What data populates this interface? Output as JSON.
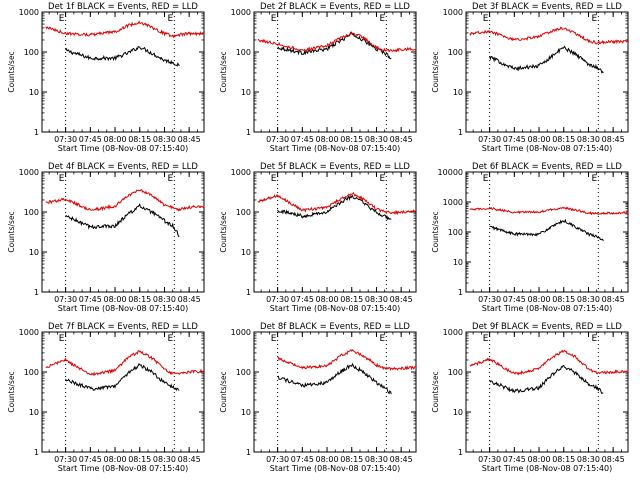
{
  "figure": {
    "shared_xlabel": "Start Time (08-Nov-08 07:15:40)",
    "ylabel": "Counts/sec",
    "marker_label": "E",
    "colors": {
      "events": "#000000",
      "lld": "#e00000",
      "axes": "#000000",
      "background": "#ffffff"
    }
  },
  "chart_data": [
    {
      "type": "line",
      "title": "Det 1f BLACK = Events, RED = LLD",
      "xlabel": "Start Time (08-Nov-08 07:15:40)",
      "ylabel": "Counts/sec",
      "x_ticks": [
        "07:30",
        "07:45",
        "08:00",
        "08:15",
        "08:30",
        "08:45"
      ],
      "y_ticks": [
        "1",
        "10",
        "100",
        "1000"
      ],
      "yscale": "log",
      "ylim": [
        1,
        1000
      ],
      "xlim": [
        "07:15:40",
        "08:54"
      ],
      "markers": [
        "07:30",
        "08:36"
      ],
      "x": [
        "07:18",
        "07:30",
        "07:45",
        "08:00",
        "08:08",
        "08:15",
        "08:22",
        "08:30",
        "08:35",
        "08:39",
        "08:45",
        "08:54"
      ],
      "series": [
        {
          "values": [
            null,
            110,
            70,
            70,
            95,
            135,
            95,
            62,
            55,
            45,
            null,
            null
          ]
        },
        {
          "values": [
            420,
            290,
            270,
            320,
            460,
            560,
            420,
            290,
            250,
            270,
            290,
            290
          ]
        }
      ]
    },
    {
      "type": "line",
      "title": "Det 2f BLACK = Events, RED = LLD",
      "xlabel": "Start Time (08-Nov-08 07:15:40)",
      "ylabel": "Counts/sec",
      "x_ticks": [
        "07:30",
        "07:45",
        "08:00",
        "08:15",
        "08:30",
        "08:45"
      ],
      "y_ticks": [
        "1",
        "10",
        "100",
        "1000"
      ],
      "yscale": "log",
      "ylim": [
        1,
        1000
      ],
      "xlim": [
        "07:15:40",
        "08:54"
      ],
      "markers": [
        "07:30",
        "08:36"
      ],
      "x": [
        "07:18",
        "07:30",
        "07:45",
        "08:00",
        "08:08",
        "08:15",
        "08:22",
        "08:30",
        "08:35",
        "08:39",
        "08:45",
        "08:54"
      ],
      "series": [
        {
          "values": [
            null,
            130,
            95,
            120,
            190,
            280,
            200,
            120,
            95,
            70,
            null,
            null
          ]
        },
        {
          "values": [
            200,
            160,
            110,
            145,
            220,
            300,
            230,
            130,
            110,
            110,
            115,
            120
          ]
        }
      ]
    },
    {
      "type": "line",
      "title": "Det 3f BLACK = Events, RED = LLD",
      "xlabel": "Start Time (08-Nov-08 07:15:40)",
      "ylabel": "Counts/sec",
      "x_ticks": [
        "07:30",
        "07:45",
        "08:00",
        "08:15",
        "08:30",
        "08:45"
      ],
      "y_ticks": [
        "1",
        "10",
        "100",
        "1000"
      ],
      "yscale": "log",
      "ylim": [
        1,
        1000
      ],
      "xlim": [
        "07:15:40",
        "08:54"
      ],
      "markers": [
        "07:30",
        "08:36"
      ],
      "x": [
        "07:18",
        "07:30",
        "07:45",
        "08:00",
        "08:08",
        "08:15",
        "08:22",
        "08:30",
        "08:35",
        "08:39",
        "08:45",
        "08:54"
      ],
      "series": [
        {
          "values": [
            null,
            75,
            38,
            45,
            80,
            130,
            90,
            50,
            42,
            30,
            null,
            null
          ]
        },
        {
          "values": [
            280,
            330,
            200,
            240,
            340,
            400,
            290,
            190,
            170,
            175,
            180,
            185
          ]
        }
      ]
    },
    {
      "type": "line",
      "title": "Det 4f BLACK = Events, RED = LLD",
      "xlabel": "Start Time (08-Nov-08 07:15:40)",
      "ylabel": "Counts/sec",
      "x_ticks": [
        "07:30",
        "07:45",
        "08:00",
        "08:15",
        "08:30",
        "08:45"
      ],
      "y_ticks": [
        "1",
        "10",
        "100",
        "1000"
      ],
      "yscale": "log",
      "ylim": [
        1,
        1000
      ],
      "xlim": [
        "07:15:40",
        "08:54"
      ],
      "markers": [
        "07:30",
        "08:36"
      ],
      "x": [
        "07:18",
        "07:30",
        "07:45",
        "08:00",
        "08:08",
        "08:15",
        "08:22",
        "08:30",
        "08:35",
        "08:39",
        "08:45",
        "08:54"
      ],
      "series": [
        {
          "values": [
            null,
            80,
            42,
            45,
            90,
            140,
            100,
            60,
            45,
            25,
            null,
            null
          ]
        },
        {
          "values": [
            170,
            210,
            110,
            140,
            260,
            360,
            260,
            150,
            130,
            115,
            130,
            140
          ]
        }
      ]
    },
    {
      "type": "line",
      "title": "Det 5f BLACK = Events, RED = LLD",
      "xlabel": "Start Time (08-Nov-08 07:15:40)",
      "ylabel": "Counts/sec",
      "x_ticks": [
        "07:30",
        "07:45",
        "08:00",
        "08:15",
        "08:30",
        "08:45"
      ],
      "y_ticks": [
        "1",
        "10",
        "100",
        "1000"
      ],
      "yscale": "log",
      "ylim": [
        1,
        1000
      ],
      "xlim": [
        "07:15:40",
        "08:54"
      ],
      "markers": [
        "07:30",
        "08:36"
      ],
      "x": [
        "07:18",
        "07:30",
        "07:45",
        "08:00",
        "08:08",
        "08:15",
        "08:22",
        "08:30",
        "08:35",
        "08:39",
        "08:45",
        "08:54"
      ],
      "series": [
        {
          "values": [
            null,
            110,
            80,
            100,
            170,
            250,
            170,
            95,
            80,
            65,
            null,
            null
          ]
        },
        {
          "values": [
            180,
            260,
            110,
            130,
            210,
            290,
            210,
            120,
            100,
            95,
            100,
            105
          ]
        }
      ]
    },
    {
      "type": "line",
      "title": "Det 6f BLACK = Events, RED = LLD",
      "xlabel": "Start Time (08-Nov-08 07:15:40)",
      "ylabel": "Counts/sec",
      "x_ticks": [
        "07:30",
        "07:45",
        "08:00",
        "08:15",
        "08:30",
        "08:45"
      ],
      "y_ticks": [
        "1",
        "10",
        "100",
        "1000",
        "10000"
      ],
      "yscale": "log",
      "ylim": [
        1,
        10000
      ],
      "xlim": [
        "07:15:40",
        "08:54"
      ],
      "markers": [
        "07:30",
        "08:36"
      ],
      "x": [
        "07:18",
        "07:30",
        "07:45",
        "08:00",
        "08:08",
        "08:15",
        "08:22",
        "08:30",
        "08:35",
        "08:39",
        "08:45",
        "08:54"
      ],
      "series": [
        {
          "values": [
            null,
            150,
            85,
            85,
            150,
            240,
            150,
            85,
            70,
            50,
            null,
            null
          ]
        },
        {
          "values": [
            550,
            620,
            450,
            470,
            560,
            650,
            540,
            430,
            410,
            420,
            430,
            440
          ]
        }
      ]
    },
    {
      "type": "line",
      "title": "Det 7f BLACK = Events, RED = LLD",
      "xlabel": "Start Time (08-Nov-08 07:15:40)",
      "ylabel": "Counts/sec",
      "x_ticks": [
        "07:30",
        "07:45",
        "08:00",
        "08:15",
        "08:30",
        "08:45"
      ],
      "y_ticks": [
        "1",
        "10",
        "100",
        "1000"
      ],
      "yscale": "log",
      "ylim": [
        1,
        1000
      ],
      "xlim": [
        "07:15:40",
        "08:54"
      ],
      "markers": [
        "07:30",
        "08:36"
      ],
      "x": [
        "07:18",
        "07:30",
        "07:45",
        "08:00",
        "08:08",
        "08:15",
        "08:22",
        "08:30",
        "08:35",
        "08:39",
        "08:45",
        "08:54"
      ],
      "series": [
        {
          "values": [
            null,
            65,
            38,
            45,
            95,
            150,
            100,
            55,
            42,
            35,
            null,
            null
          ]
        },
        {
          "values": [
            130,
            200,
            85,
            110,
            230,
            330,
            230,
            120,
            90,
            90,
            100,
            105
          ]
        }
      ]
    },
    {
      "type": "line",
      "title": "Det 8f BLACK = Events, RED = LLD",
      "xlabel": "Start Time (08-Nov-08 07:15:40)",
      "ylabel": "Counts/sec",
      "x_ticks": [
        "07:30",
        "07:45",
        "08:00",
        "08:15",
        "08:30",
        "08:45"
      ],
      "y_ticks": [
        "1",
        "10",
        "100",
        "1000"
      ],
      "yscale": "log",
      "ylim": [
        1,
        1000
      ],
      "xlim": [
        "07:15:40",
        "08:54"
      ],
      "markers": [
        "07:30",
        "08:36"
      ],
      "x": [
        "07:18",
        "07:30",
        "07:45",
        "08:00",
        "08:08",
        "08:15",
        "08:22",
        "08:30",
        "08:35",
        "08:39",
        "08:45",
        "08:54"
      ],
      "series": [
        {
          "values": [
            null,
            75,
            45,
            55,
            100,
            150,
            100,
            55,
            42,
            28,
            null,
            null
          ]
        },
        {
          "values": [
            null,
            220,
            130,
            140,
            250,
            340,
            250,
            150,
            120,
            120,
            125,
            130
          ]
        }
      ]
    },
    {
      "type": "line",
      "title": "Det 9f BLACK = Events, RED = LLD",
      "xlabel": "Start Time (08-Nov-08 07:15:40)",
      "ylabel": "Counts/sec",
      "x_ticks": [
        "07:30",
        "07:45",
        "08:00",
        "08:15",
        "08:30",
        "08:45"
      ],
      "y_ticks": [
        "1",
        "10",
        "100",
        "1000"
      ],
      "yscale": "log",
      "ylim": [
        1,
        1000
      ],
      "xlim": [
        "07:15:40",
        "08:54"
      ],
      "markers": [
        "07:30",
        "08:36"
      ],
      "x": [
        "07:18",
        "07:30",
        "07:45",
        "08:00",
        "08:08",
        "08:15",
        "08:22",
        "08:30",
        "08:35",
        "08:39",
        "08:45",
        "08:54"
      ],
      "series": [
        {
          "values": [
            null,
            60,
            33,
            40,
            85,
            140,
            95,
            50,
            40,
            30,
            null,
            null
          ]
        },
        {
          "values": [
            140,
            210,
            90,
            120,
            240,
            340,
            240,
            120,
            95,
            95,
            100,
            105
          ]
        }
      ]
    }
  ]
}
